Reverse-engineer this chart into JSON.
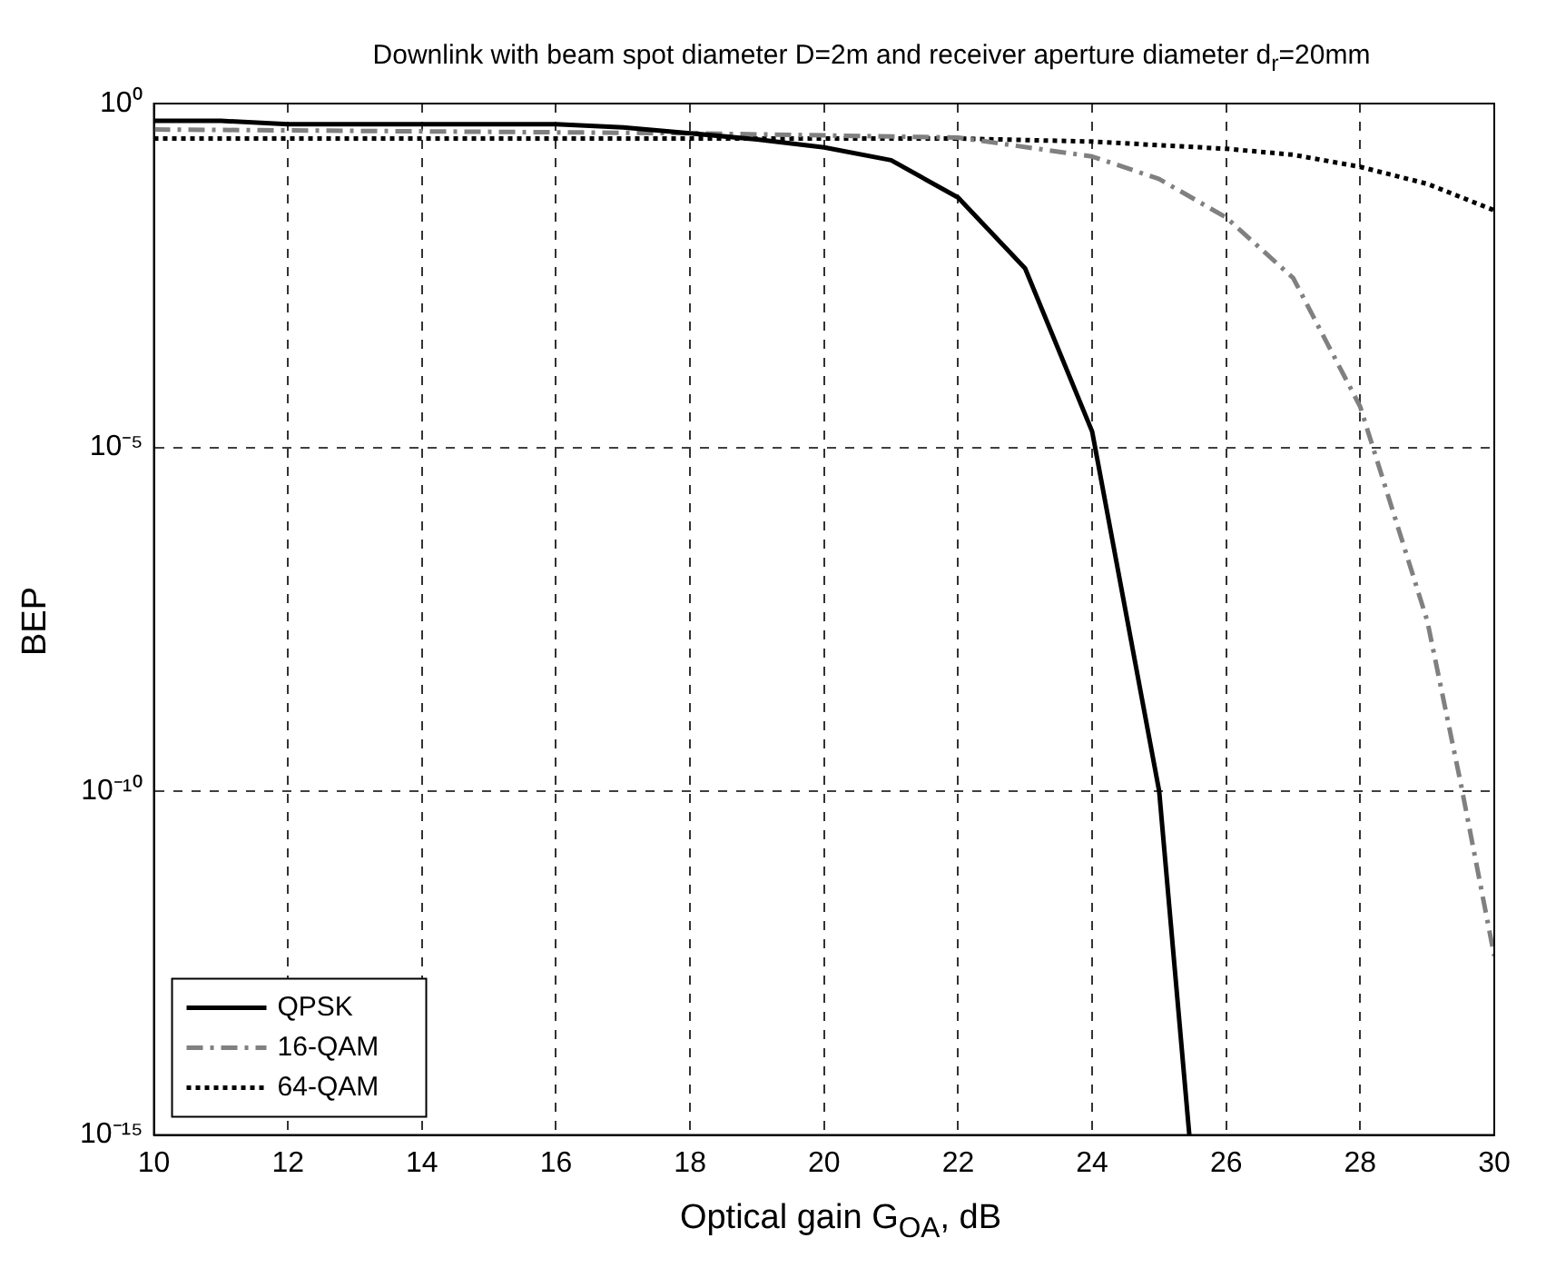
{
  "chart_data": {
    "type": "line",
    "title": "Downlink with beam spot diameter D=2m and receiver aperture diameter d$_{r}$=20mm",
    "xlabel": "Optical gain G$_{OA}$, dB",
    "ylabel": "BEP",
    "log": "y",
    "grid": true,
    "legend": "bottom left",
    "marker": "none",
    "xlim": [
      10,
      30
    ],
    "xticks": [
      10,
      12,
      14,
      16,
      18,
      20,
      22,
      24,
      26,
      28,
      30
    ],
    "ylim": [
      1e-15,
      1
    ],
    "yticks": [
      {
        "value": 1,
        "label": "10⁰"
      },
      {
        "value": 1e-05,
        "label": "10⁻⁵"
      },
      {
        "value": 1e-10,
        "label": "10⁻¹⁰"
      },
      {
        "value": 1e-15,
        "label": "10⁻¹⁵"
      }
    ],
    "series": [
      {
        "name": "QPSK",
        "color": "#000000",
        "line_style": "solid",
        "x": [
          10,
          11,
          12,
          16,
          17,
          18,
          19,
          20,
          21,
          22,
          23,
          24,
          25,
          25.45
        ],
        "values": [
          0.56,
          0.56,
          0.5,
          0.5,
          0.45,
          0.37,
          0.3,
          0.23,
          0.15,
          0.043,
          0.004,
          1.7e-05,
          1e-10,
          1e-15
        ]
      },
      {
        "name": "16-QAM",
        "color": "#808080",
        "line_style": "dashed",
        "x": [
          10,
          18,
          22,
          24,
          25,
          26,
          27,
          28,
          29,
          29.5,
          30
        ],
        "values": [
          0.42,
          0.37,
          0.32,
          0.17,
          0.08,
          0.022,
          0.0029,
          3.9e-05,
          3e-08,
          1.3e-10,
          4e-13
        ]
      },
      {
        "name": "64-QAM",
        "color": "#000000",
        "line_style": "dotted",
        "x": [
          10,
          22,
          24,
          26,
          27,
          28,
          29,
          30
        ],
        "values": [
          0.31,
          0.31,
          0.28,
          0.22,
          0.18,
          0.12,
          0.068,
          0.028
        ]
      }
    ]
  }
}
